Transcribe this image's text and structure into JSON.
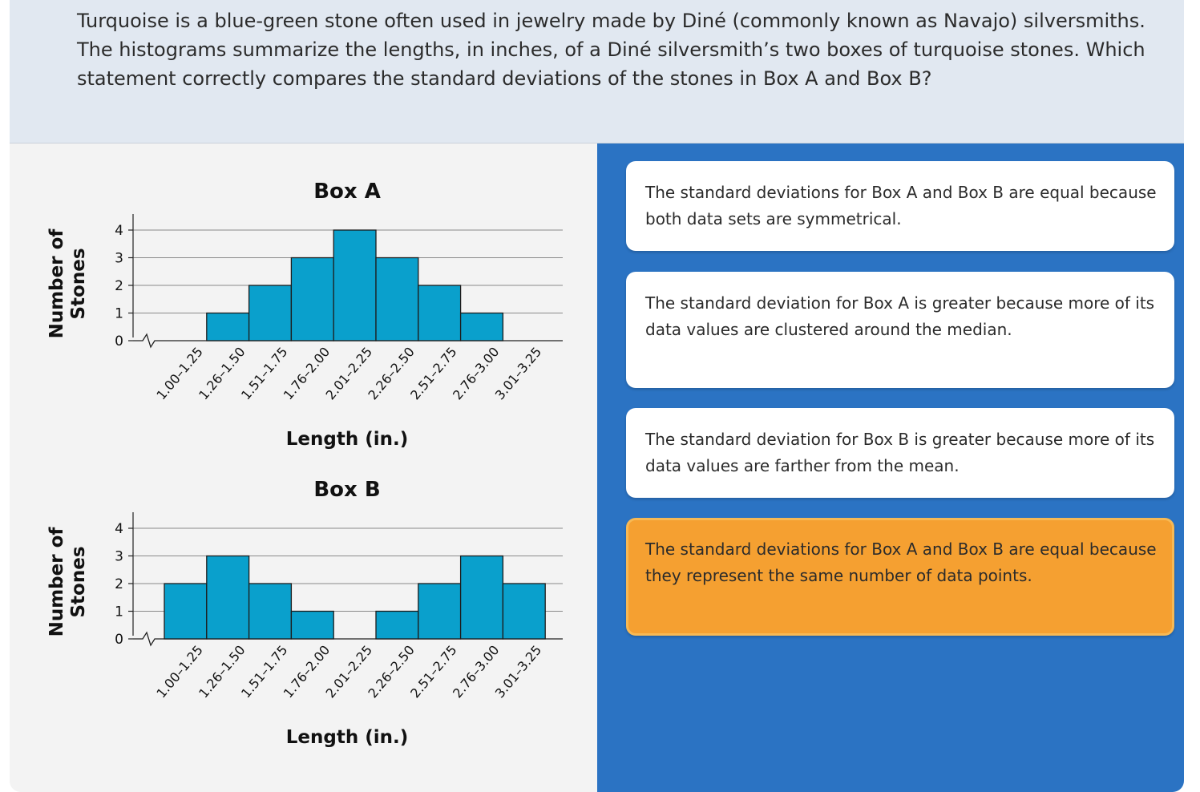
{
  "question": {
    "text": "Turquoise is a blue-green stone often used in jewelry made by Diné (commonly known as Navajo) silversmiths. The histograms summarize the lengths, in inches, of a Diné silversmith’s two boxes of turquoise stones. Which statement correctly compares the standard deviations of the stones in Box A and Box B?"
  },
  "answers": [
    {
      "text": "The standard deviations for Box A and Box B are equal because both data sets are symmetrical.",
      "selected": false
    },
    {
      "text": "The standard deviation for Box A is greater because more of its data values are clustered around the median.",
      "selected": false
    },
    {
      "text": "The standard deviation for Box B is greater because more of its data values are farther from the mean.",
      "selected": false
    },
    {
      "text": "The standard deviations for Box A and Box B are equal because they represent the same number of data points.",
      "selected": true
    }
  ],
  "colors": {
    "bar_fill": "#0aa0cc",
    "selected_answer": "#f5a031",
    "right_panel": "#2b73c3"
  },
  "chart_data": [
    {
      "type": "bar",
      "title": "Box A",
      "xlabel": "Length (in.)",
      "ylabel": "Number of Stones",
      "categories": [
        "1.00–1.25",
        "1.26–1.50",
        "1.51–1.75",
        "1.76–2.00",
        "2.01–2.25",
        "2.26–2.50",
        "2.51–2.75",
        "2.76–3.00",
        "3.01–3.25"
      ],
      "values": [
        0,
        1,
        2,
        3,
        4,
        3,
        2,
        1,
        0
      ],
      "yticks": [
        0,
        1,
        2,
        3,
        4
      ],
      "ylim": [
        0,
        4
      ],
      "grid": true
    },
    {
      "type": "bar",
      "title": "Box B",
      "xlabel": "Length (in.)",
      "ylabel": "Number of Stones",
      "categories": [
        "1.00–1.25",
        "1.26–1.50",
        "1.51–1.75",
        "1.76–2.00",
        "2.01–2.25",
        "2.26–2.50",
        "2.51–2.75",
        "2.76–3.00",
        "3.01–3.25"
      ],
      "values": [
        2,
        3,
        2,
        1,
        0,
        1,
        2,
        3,
        2
      ],
      "yticks": [
        0,
        1,
        2,
        3,
        4
      ],
      "ylim": [
        0,
        4
      ],
      "grid": true
    }
  ]
}
